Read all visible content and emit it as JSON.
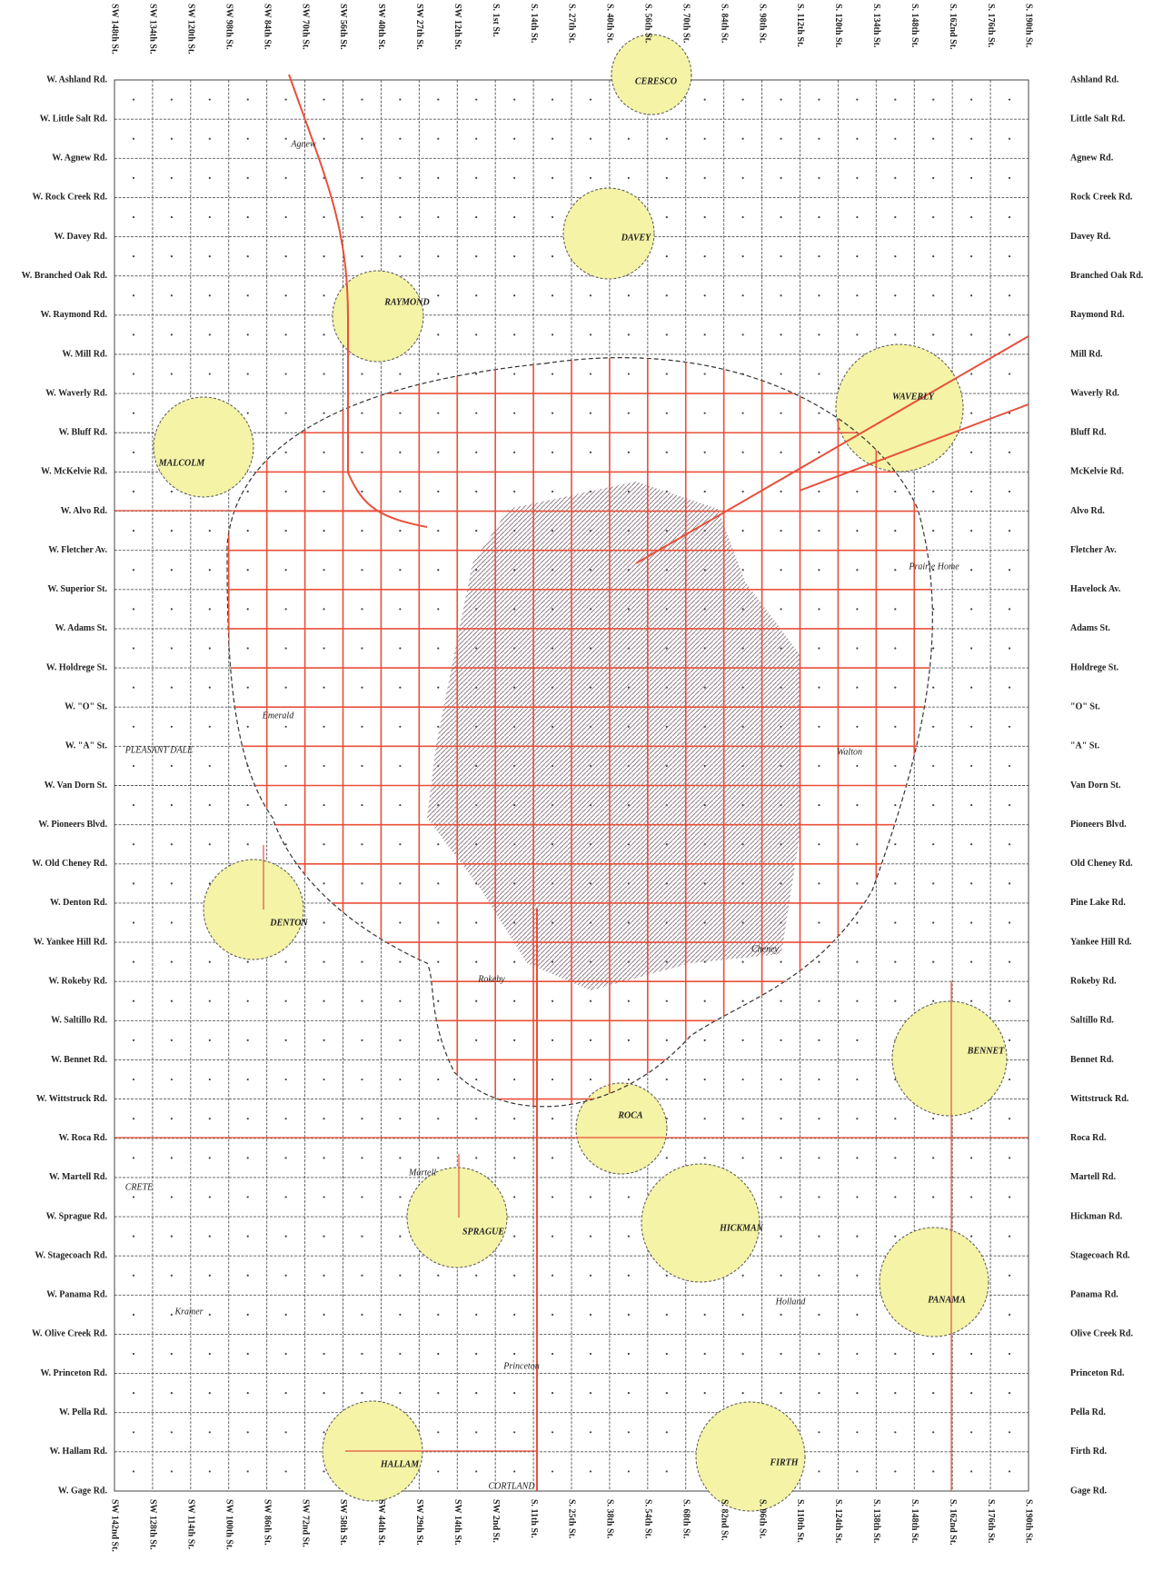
{
  "map": {
    "top_streets": [
      "SW 148th St.",
      "SW 134th St.",
      "SW 120th St.",
      "SW 98th St.",
      "SW 84th St.",
      "SW 70th St.",
      "SW 56th St.",
      "SW 40th St.",
      "SW 27th St.",
      "SW 12th St.",
      "S. 1st St.",
      "S. 14th St.",
      "S. 27th St.",
      "S. 40th St.",
      "S. 56th St.",
      "S. 70th St.",
      "S. 84th St.",
      "S. 98th St.",
      "S. 112th St.",
      "S. 120th St.",
      "S. 134th St.",
      "S. 148th St.",
      "S. 162nd St.",
      "S. 176th St.",
      "S. 190th St."
    ],
    "bottom_streets": [
      "SW 142nd St.",
      "SW 128th St.",
      "SW 114th St.",
      "SW 100th St.",
      "SW 86th St.",
      "SW 72nd St.",
      "SW 58th St.",
      "SW 44th St.",
      "SW 29th St.",
      "SW 14th St.",
      "SW 2nd St.",
      "S. 11th St.",
      "S. 25th St.",
      "S. 38th St.",
      "S. 54th St.",
      "S. 68th St.",
      "S. 82nd St.",
      "S. 96th St.",
      "S. 110th St.",
      "S. 124th St.",
      "S. 138th St.",
      "S. 148th St.",
      "S. 162nd St.",
      "S. 176th St.",
      "S. 190th St."
    ],
    "left_roads": [
      "W. Ashland Rd.",
      "W. Little Salt Rd.",
      "W. Agnew Rd.",
      "W. Rock Creek Rd.",
      "W. Davey Rd.",
      "W. Branched Oak Rd.",
      "W. Raymond Rd.",
      "W. Mill Rd.",
      "W. Waverly Rd.",
      "W. Bluff Rd.",
      "W. McKelvie Rd.",
      "W. Alvo Rd.",
      "W. Fletcher Av.",
      "W. Superior St.",
      "W. Adams St.",
      "W. Holdrege St.",
      "W. \"O\" St.",
      "W. \"A\" St.",
      "W. Van Dorn St.",
      "W. Pioneers Blvd.",
      "W. Old Cheney Rd.",
      "W. Denton Rd.",
      "W. Yankee Hill Rd.",
      "W. Rokeby Rd.",
      "W. Saltillo Rd.",
      "W. Bennet Rd.",
      "W. Wittstruck Rd.",
      "W. Roca Rd.",
      "W. Martell Rd.",
      "W. Sprague Rd.",
      "W. Stagecoach Rd.",
      "W. Panama Rd.",
      "W. Olive Creek Rd.",
      "W. Princeton Rd.",
      "W. Pella Rd.",
      "W. Hallam Rd.",
      "W. Gage Rd."
    ],
    "right_roads": [
      "Ashland Rd.",
      "Little Salt Rd.",
      "Agnew Rd.",
      "Rock Creek Rd.",
      "Davey Rd.",
      "Branched Oak Rd.",
      "Raymond Rd.",
      "Mill Rd.",
      "Waverly Rd.",
      "Bluff Rd.",
      "McKelvie Rd.",
      "Alvo Rd.",
      "Fletcher Av.",
      "Havelock Av.",
      "Adams St.",
      "Holdrege St.",
      "\"O\" St.",
      "\"A\" St.",
      "Van Dorn St.",
      "Pioneers Blvd.",
      "Old Cheney Rd.",
      "Pine Lake Rd.",
      "Yankee Hill Rd.",
      "Rokeby Rd.",
      "Saltillo Rd.",
      "Bennet Rd.",
      "Wittstruck Rd.",
      "Roca Rd.",
      "Martell Rd.",
      "Hickman Rd.",
      "Stagecoach Rd.",
      "Panama Rd.",
      "Olive Creek Rd.",
      "Princeton Rd.",
      "Pella Rd.",
      "Firth Rd.",
      "Gage Rd."
    ],
    "towns": [
      "CERESCO",
      "DAVEY",
      "RAYMOND",
      "WAVERLY",
      "MALCOLM",
      "DENTON",
      "BENNET",
      "ROCA",
      "HICKMAN",
      "SPRAGUE",
      "PANAMA",
      "HALLAM",
      "FIRTH"
    ],
    "places": [
      "Agnew",
      "Prairie Home",
      "Emerald",
      "PLEASANT DALE",
      "Walton",
      "Cheney",
      "Rokeby",
      "CRETE",
      "Martell",
      "Kramer",
      "Holland",
      "Princeton",
      "CORTLAND"
    ]
  }
}
